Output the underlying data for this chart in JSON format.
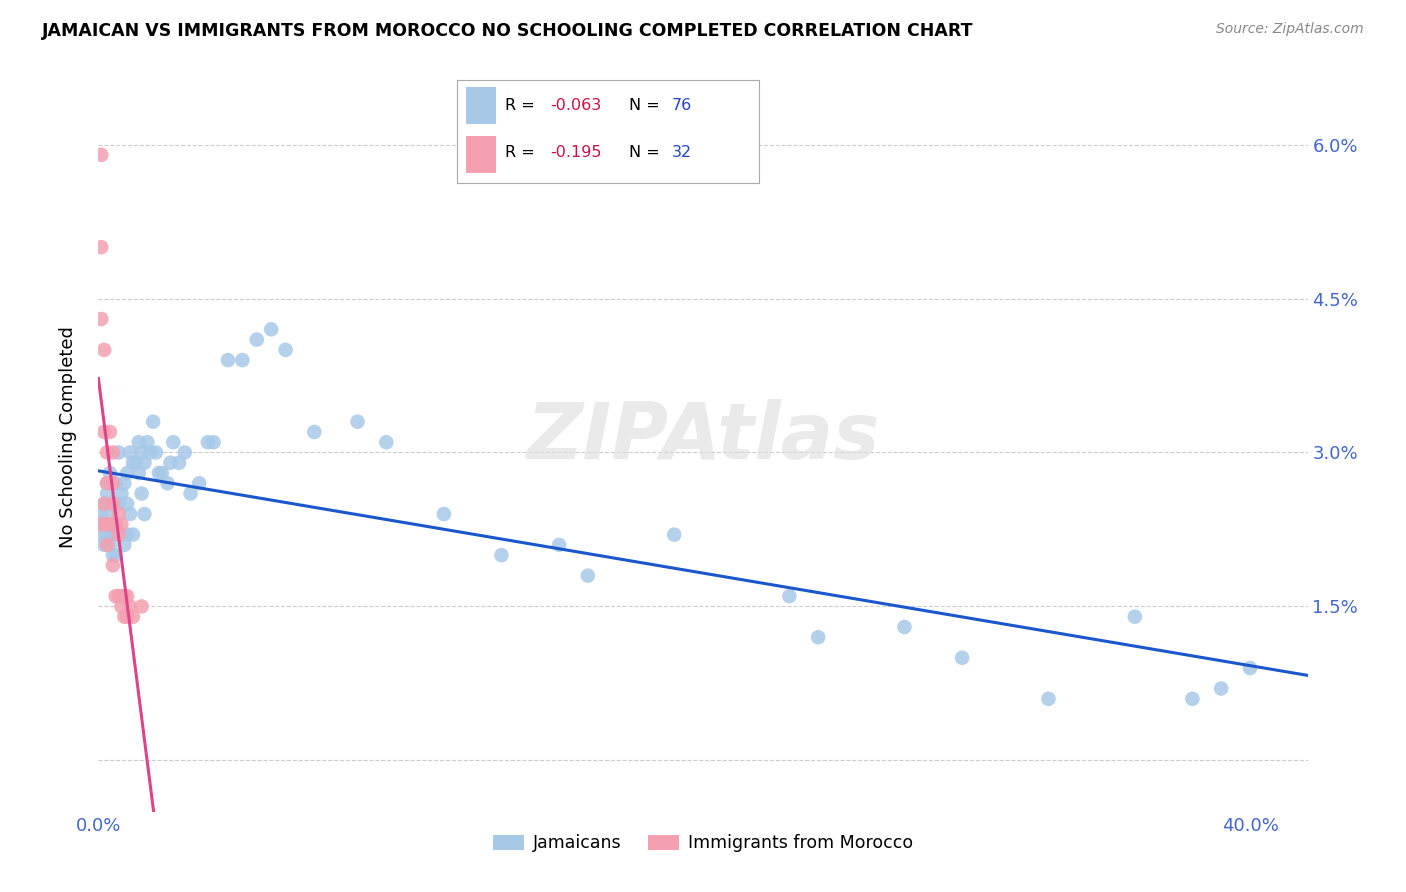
{
  "title": "JAMAICAN VS IMMIGRANTS FROM MOROCCO NO SCHOOLING COMPLETED CORRELATION CHART",
  "source": "Source: ZipAtlas.com",
  "ylabel": "No Schooling Completed",
  "yticks": [
    0.0,
    0.015,
    0.03,
    0.045,
    0.06
  ],
  "ytick_labels": [
    "",
    "1.5%",
    "3.0%",
    "4.5%",
    "6.0%"
  ],
  "xticks": [
    0.0,
    0.1,
    0.2,
    0.3,
    0.4
  ],
  "xtick_labels": [
    "0.0%",
    "",
    "",
    "",
    "40.0%"
  ],
  "xlim": [
    0.0,
    0.42
  ],
  "ylim": [
    -0.005,
    0.068
  ],
  "color_jamaican": "#a8c8e8",
  "color_morocco": "#f4a0b0",
  "trendline_color_jamaican": "#1a56cc",
  "trendline_color_morocco": "#dd4488",
  "trendline_dashed_color": "#cccccc",
  "watermark": "ZIPAtlas",
  "legend_r_jamaican": "-0.063",
  "legend_n_jamaican": "76",
  "legend_r_morocco": "-0.195",
  "legend_n_morocco": "32",
  "jamaican_x": [
    0.001,
    0.001,
    0.002,
    0.002,
    0.002,
    0.003,
    0.003,
    0.003,
    0.003,
    0.004,
    0.004,
    0.004,
    0.005,
    0.005,
    0.005,
    0.006,
    0.006,
    0.006,
    0.007,
    0.007,
    0.007,
    0.008,
    0.008,
    0.009,
    0.009,
    0.01,
    0.01,
    0.01,
    0.011,
    0.011,
    0.012,
    0.012,
    0.013,
    0.014,
    0.014,
    0.015,
    0.015,
    0.016,
    0.016,
    0.017,
    0.018,
    0.019,
    0.02,
    0.021,
    0.022,
    0.024,
    0.025,
    0.026,
    0.028,
    0.03,
    0.032,
    0.035,
    0.038,
    0.04,
    0.045,
    0.05,
    0.055,
    0.06,
    0.065,
    0.075,
    0.09,
    0.1,
    0.12,
    0.14,
    0.16,
    0.2,
    0.24,
    0.28,
    0.3,
    0.33,
    0.36,
    0.38,
    0.39,
    0.4,
    0.17,
    0.25
  ],
  "jamaican_y": [
    0.022,
    0.024,
    0.021,
    0.023,
    0.025,
    0.022,
    0.024,
    0.026,
    0.027,
    0.021,
    0.023,
    0.028,
    0.02,
    0.022,
    0.025,
    0.02,
    0.023,
    0.027,
    0.022,
    0.025,
    0.03,
    0.022,
    0.026,
    0.021,
    0.027,
    0.022,
    0.025,
    0.028,
    0.024,
    0.03,
    0.022,
    0.029,
    0.029,
    0.028,
    0.031,
    0.026,
    0.03,
    0.024,
    0.029,
    0.031,
    0.03,
    0.033,
    0.03,
    0.028,
    0.028,
    0.027,
    0.029,
    0.031,
    0.029,
    0.03,
    0.026,
    0.027,
    0.031,
    0.031,
    0.039,
    0.039,
    0.041,
    0.042,
    0.04,
    0.032,
    0.033,
    0.031,
    0.024,
    0.02,
    0.021,
    0.022,
    0.016,
    0.013,
    0.01,
    0.006,
    0.014,
    0.006,
    0.007,
    0.009,
    0.018,
    0.012
  ],
  "morocco_x": [
    0.001,
    0.001,
    0.001,
    0.001,
    0.002,
    0.002,
    0.002,
    0.003,
    0.003,
    0.003,
    0.003,
    0.004,
    0.004,
    0.005,
    0.005,
    0.005,
    0.005,
    0.006,
    0.006,
    0.007,
    0.007,
    0.007,
    0.008,
    0.008,
    0.008,
    0.009,
    0.009,
    0.01,
    0.01,
    0.011,
    0.012,
    0.015
  ],
  "morocco_y": [
    0.059,
    0.05,
    0.043,
    0.023,
    0.04,
    0.032,
    0.025,
    0.03,
    0.027,
    0.023,
    0.021,
    0.032,
    0.023,
    0.03,
    0.027,
    0.025,
    0.019,
    0.023,
    0.016,
    0.024,
    0.022,
    0.016,
    0.023,
    0.016,
    0.015,
    0.016,
    0.014,
    0.016,
    0.014,
    0.015,
    0.014,
    0.015
  ]
}
